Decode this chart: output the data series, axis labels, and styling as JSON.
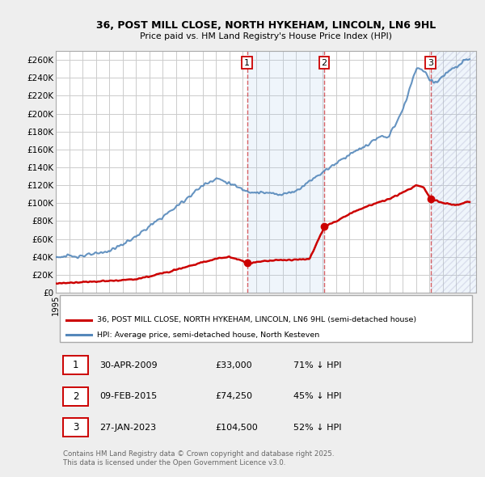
{
  "title": "36, POST MILL CLOSE, NORTH HYKEHAM, LINCOLN, LN6 9HL",
  "subtitle": "Price paid vs. HM Land Registry's House Price Index (HPI)",
  "ylim": [
    0,
    270000
  ],
  "xlim_start": 1995.0,
  "xlim_end": 2026.5,
  "purchase_dates": [
    2009.33,
    2015.11,
    2023.08
  ],
  "purchase_prices": [
    33000,
    74250,
    104500
  ],
  "purchase_labels": [
    "1",
    "2",
    "3"
  ],
  "legend_line1": "36, POST MILL CLOSE, NORTH HYKEHAM, LINCOLN, LN6 9HL (semi-detached house)",
  "legend_line2": "HPI: Average price, semi-detached house, North Kesteven",
  "table_entries": [
    {
      "num": "1",
      "date": "30-APR-2009",
      "price": "£33,000",
      "pct": "71% ↓ HPI"
    },
    {
      "num": "2",
      "date": "09-FEB-2015",
      "price": "£74,250",
      "pct": "45% ↓ HPI"
    },
    {
      "num": "3",
      "date": "27-JAN-2023",
      "price": "£104,500",
      "pct": "52% ↓ HPI"
    }
  ],
  "footnote": "Contains HM Land Registry data © Crown copyright and database right 2025.\nThis data is licensed under the Open Government Licence v3.0.",
  "red_color": "#cc0000",
  "blue_color": "#5588bb",
  "bg_color": "#eeeeee",
  "plot_bg_color": "#ffffff",
  "grid_color": "#cccccc",
  "shade_color": "#ddeeff"
}
